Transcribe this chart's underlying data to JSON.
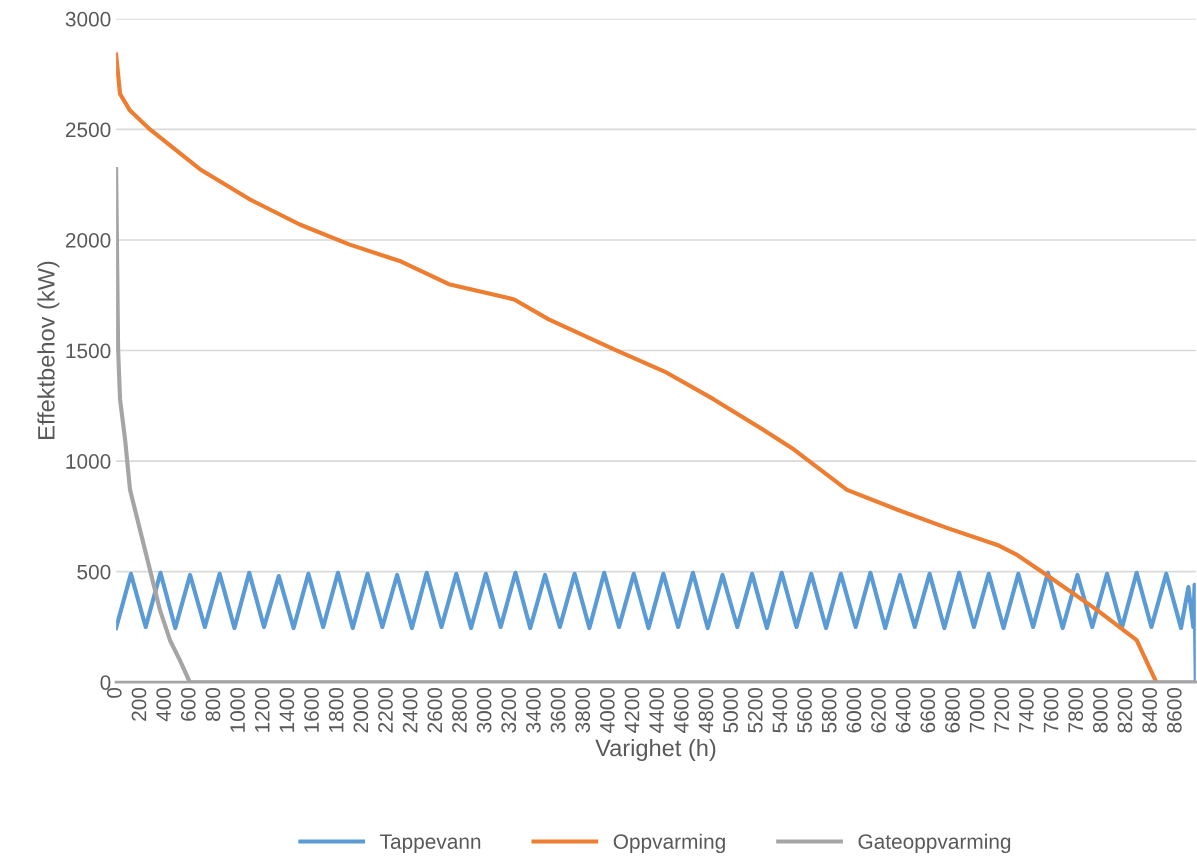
{
  "chart_data": {
    "type": "line",
    "xlabel": "Varighet (h)",
    "ylabel": "Effektbehov (kW)",
    "xlim": [
      0,
      8760
    ],
    "xticks": [
      0,
      200,
      400,
      600,
      800,
      1000,
      1200,
      1400,
      1600,
      1800,
      2000,
      2200,
      2400,
      2600,
      2800,
      3000,
      3200,
      3400,
      3600,
      3800,
      4000,
      4200,
      4400,
      4600,
      4800,
      5000,
      5200,
      5400,
      5600,
      5800,
      6000,
      6200,
      6400,
      6600,
      6800,
      7000,
      7200,
      7400,
      7600,
      7800,
      8000,
      8200,
      8400,
      8600
    ],
    "ylim": [
      0,
      3000
    ],
    "yticks": [
      0,
      500,
      1000,
      1500,
      2000,
      2500,
      3000
    ],
    "grid": "y",
    "legend": "bottom",
    "marker": "none",
    "line_style": "solid",
    "series": [
      {
        "name": "Tappevann",
        "color": "#5b9bd5",
        "x": [
          0,
          120,
          240,
          360,
          480,
          600,
          720,
          840,
          960,
          1080,
          1200,
          1320,
          1440,
          1560,
          1680,
          1800,
          1920,
          2040,
          2160,
          2280,
          2400,
          2520,
          2640,
          2760,
          2880,
          3000,
          3120,
          3240,
          3360,
          3480,
          3600,
          3720,
          3840,
          3960,
          4080,
          4200,
          4320,
          4440,
          4560,
          4680,
          4800,
          4920,
          5040,
          5160,
          5280,
          5400,
          5520,
          5640,
          5760,
          5880,
          6000,
          6120,
          6240,
          6360,
          6480,
          6600,
          6720,
          6840,
          6960,
          7080,
          7200,
          7320,
          7440,
          7560,
          7680,
          7800,
          7920,
          8040,
          8160,
          8280,
          8400,
          8520,
          8640,
          8700,
          8740,
          8750,
          8760
        ],
        "values": [
          245,
          490,
          250,
          495,
          245,
          485,
          250,
          490,
          245,
          495,
          250,
          480,
          245,
          490,
          250,
          495,
          245,
          490,
          250,
          485,
          245,
          495,
          250,
          490,
          245,
          490,
          250,
          495,
          245,
          485,
          250,
          490,
          245,
          495,
          250,
          490,
          245,
          490,
          250,
          495,
          245,
          485,
          250,
          490,
          245,
          495,
          250,
          490,
          245,
          490,
          250,
          495,
          245,
          485,
          250,
          490,
          245,
          495,
          250,
          490,
          245,
          490,
          250,
          495,
          245,
          485,
          250,
          490,
          245,
          495,
          250,
          490,
          245,
          430,
          250,
          440,
          0
        ]
      },
      {
        "name": "Oppvarming",
        "color": "#ed7d31",
        "x": [
          0,
          32,
          113,
          275,
          680,
          1080,
          1490,
          1890,
          2300,
          2700,
          3230,
          3510,
          4040,
          4450,
          4850,
          5250,
          5500,
          5660,
          5930,
          6340,
          6740,
          7150,
          7310,
          7550,
          7960,
          8280,
          8440
        ],
        "values": [
          2838,
          2660,
          2585,
          2500,
          2320,
          2185,
          2070,
          1980,
          1905,
          1800,
          1731,
          1641,
          1505,
          1405,
          1279,
          1142,
          1052,
          984,
          870,
          780,
          698,
          621,
          576,
          485,
          326,
          190,
          0
        ]
      },
      {
        "name": "Gateoppvarming",
        "color": "#a5a5a5",
        "x": [
          0,
          8,
          16,
          32,
          73,
          113,
          194,
          275,
          356,
          437,
          517,
          598,
          8760
        ],
        "values": [
          2320,
          1913,
          1505,
          1279,
          1097,
          870,
          689,
          508,
          326,
          190,
          100,
          0,
          0
        ]
      }
    ]
  }
}
